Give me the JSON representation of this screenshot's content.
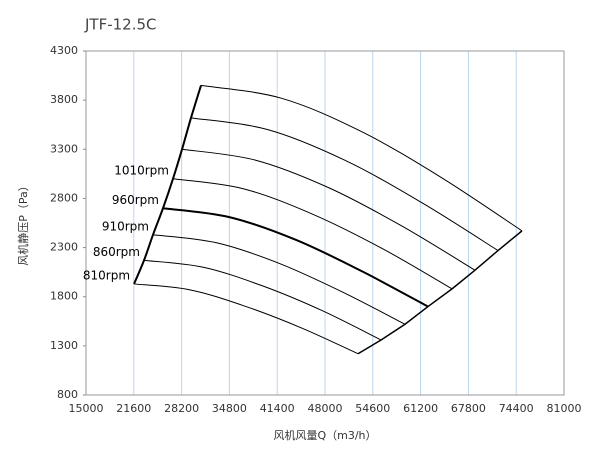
{
  "chart_data": {
    "type": "line",
    "title": "JTF-12.5C",
    "x_label": "风机风量Q（m3/h）",
    "y_label": "风机静压P（Pa）",
    "xlim": [
      15000,
      81000
    ],
    "xticks": [
      15000,
      21600,
      28200,
      34800,
      41400,
      48000,
      54600,
      61200,
      67800,
      74400,
      81000
    ],
    "ylim": [
      800,
      4300
    ],
    "yticks": [
      800,
      1300,
      1800,
      2300,
      2800,
      3300,
      3800,
      4300
    ],
    "grid": true,
    "grid_color": "#bcd6ee",
    "series": [
      {
        "color": "#000000",
        "line_width": 1,
        "x": [
          30880,
          41960,
          53040,
          64120,
          75200
        ],
        "values": [
          3950,
          3820,
          3480,
          3010,
          2470
        ]
      },
      {
        "color": "#000000",
        "line_width": 1,
        "x": [
          29500,
          40100,
          50700,
          61290,
          71890
        ],
        "values": [
          3620,
          3500,
          3190,
          2760,
          2270
        ]
      },
      {
        "color": "#000000",
        "line_width": 1,
        "x": [
          28260,
          38370,
          48490,
          58600,
          68710
        ],
        "values": [
          3300,
          3190,
          2910,
          2520,
          2070
        ]
      },
      {
        "name": "1010rpm",
        "color": "#000000",
        "line_width": 1,
        "x": [
          27010,
          36640,
          46280,
          55910,
          65540
        ],
        "values": [
          3000,
          2900,
          2640,
          2290,
          1880
        ]
      },
      {
        "name": "960rpm",
        "color": "#000000",
        "line_width": 2,
        "x": [
          25630,
          34780,
          43930,
          53070,
          62220
        ],
        "values": [
          2700,
          2610,
          2380,
          2060,
          1700
        ]
      },
      {
        "name": "910rpm",
        "color": "#000000",
        "line_width": 1,
        "x": [
          24250,
          32950,
          41650,
          50350,
          59050
        ],
        "values": [
          2430,
          2350,
          2140,
          1850,
          1520
        ]
      },
      {
        "name": "860rpm",
        "color": "#000000",
        "line_width": 1,
        "x": [
          23010,
          31190,
          39380,
          47560,
          55740
        ],
        "values": [
          2170,
          2100,
          1910,
          1660,
          1360
        ]
      },
      {
        "name": "810rpm",
        "color": "#000000",
        "line_width": 1,
        "x": [
          21630,
          29360,
          37100,
          44830,
          52560
        ],
        "values": [
          1930,
          1870,
          1700,
          1480,
          1220
        ]
      }
    ]
  }
}
